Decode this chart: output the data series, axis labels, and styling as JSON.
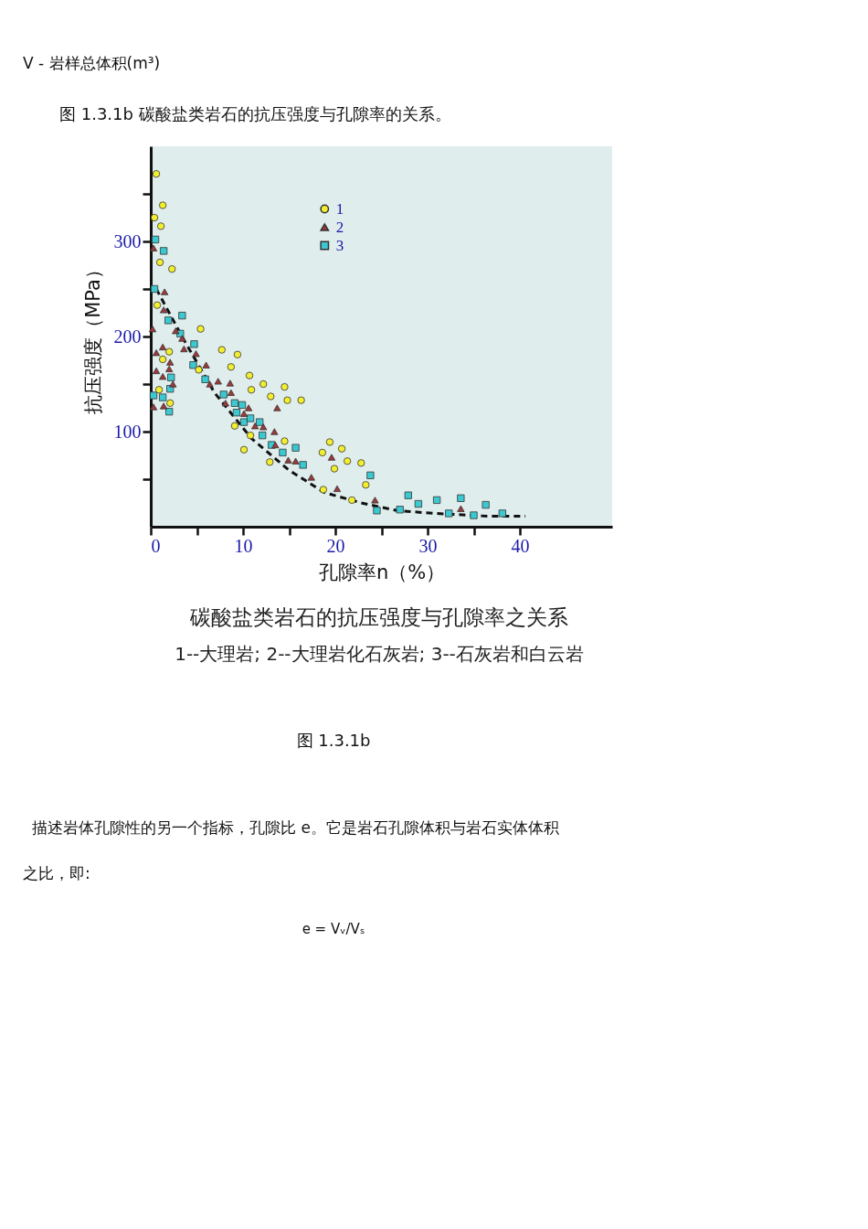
{
  "chart_data": {
    "type": "scatter",
    "title": "图 1.3.1b 碳酸盐类岩石的抗压强度与孔隙率的关系。",
    "xlabel": "孔隙率n（%）",
    "ylabel": "抗压强度（MPa）",
    "annotations": [
      "V - 岩样总体积(m³)",
      "碳酸盐类岩石的抗压强度与孔隙率之关系",
      "1--大理岩;  2--大理岩化石灰岩;  3--石灰岩和白云岩",
      "图 1.3.1b",
      "描述岩体孔隙性的另一个指标，孔隙比 e。它是岩石孔隙体积与岩石实体体积",
      "之比，即:",
      "e = Vᵥ/Vₛ"
    ],
    "xlim": [
      0,
      50
    ],
    "ylim": [
      0,
      400
    ],
    "xticks": [
      0,
      {
        "value": 5,
        "label": null
      },
      10,
      {
        "value": 15,
        "label": null
      },
      20,
      {
        "value": 25,
        "label": null
      },
      30,
      {
        "value": 35,
        "label": null
      },
      40
    ],
    "yticks": [
      {
        "value": 50,
        "label": null
      },
      100,
      {
        "value": 150,
        "label": null
      },
      200,
      {
        "value": 250,
        "label": null
      },
      300,
      {
        "value": 350,
        "label": null
      }
    ],
    "grid": false,
    "legend": "top",
    "series": [
      {
        "name": "1",
        "color": "#f2ee30",
        "marker": "circle",
        "x": [
          0.6,
          1.3,
          0.4,
          1.1,
          1.0,
          2.3,
          0.7,
          5.4,
          2.0,
          1.3,
          0.9,
          2.1,
          5.2,
          7.7,
          9.4,
          8.7,
          9.1,
          10.7,
          12.2,
          14.5,
          10.9,
          13.0,
          14.8,
          16.3,
          10.8,
          10.1,
          14.5,
          12.9,
          19.4,
          18.6,
          20.7,
          19.9,
          21.3,
          22.8,
          18.7,
          23.3,
          21.8
        ],
        "values": [
          371,
          338,
          325,
          316,
          278,
          271,
          233,
          208,
          184,
          176,
          144,
          130,
          165,
          186,
          181,
          168,
          106,
          159,
          150,
          147,
          144,
          137,
          133,
          133,
          96,
          81,
          90,
          68,
          89,
          78,
          82,
          61,
          69,
          67,
          39,
          44,
          28
        ]
      },
      {
        "name": "2",
        "color": "#9b3a3a",
        "marker": "triangle",
        "x": [
          0.3,
          1.5,
          1.4,
          0.2,
          2.7,
          3.4,
          1.3,
          3.6,
          0.6,
          2.1,
          4.9,
          0.6,
          2.0,
          1.3,
          2.4,
          6.0,
          6.4,
          7.3,
          8.6,
          8.7,
          8.1,
          0.3,
          1.4,
          10.6,
          10.1,
          13.7,
          11.3,
          12.2,
          13.4,
          13.5,
          14.9,
          15.7,
          17.4,
          19.6,
          20.2,
          24.3,
          33.6
        ],
        "values": [
          293,
          247,
          228,
          208,
          206,
          198,
          189,
          187,
          183,
          173,
          182,
          164,
          166,
          158,
          150,
          170,
          150,
          153,
          151,
          141,
          130,
          126,
          127,
          125,
          119,
          125,
          106,
          105,
          100,
          86,
          70,
          69,
          52,
          73,
          40,
          28,
          19
        ]
      },
      {
        "name": "3",
        "color": "#3cc8d0",
        "marker": "square",
        "x": [
          0.5,
          1.4,
          0.4,
          3.4,
          1.9,
          3.2,
          4.7,
          4.6,
          5.9,
          2.2,
          2.1,
          0.3,
          1.3,
          2.0,
          7.9,
          9.1,
          9.9,
          9.3,
          10.1,
          10.8,
          11.8,
          12.1,
          13.1,
          14.3,
          15.7,
          16.5,
          23.8,
          24.5,
          27.9,
          29.0,
          27.0,
          31.0,
          33.6,
          32.3,
          35.0,
          36.3,
          38.1
        ],
        "values": [
          302,
          290,
          250,
          222,
          217,
          203,
          192,
          170,
          155,
          157,
          145,
          138,
          136,
          121,
          139,
          130,
          128,
          120,
          110,
          114,
          110,
          96,
          86,
          78,
          83,
          65,
          54,
          17,
          33,
          24,
          18,
          28,
          30,
          14,
          12,
          23,
          14
        ]
      },
      {
        "type": "line",
        "color": "#111111",
        "line_style": "dashed",
        "marker": "none",
        "x": [
          0.6,
          3.5,
          6.9,
          10.9,
          14.9,
          18.8,
          22.8,
          26.7,
          30.7,
          36.6,
          40.6
        ],
        "values": [
          250,
          198,
          141,
          93,
          60,
          36,
          25,
          17,
          14,
          11,
          11
        ]
      }
    ]
  }
}
